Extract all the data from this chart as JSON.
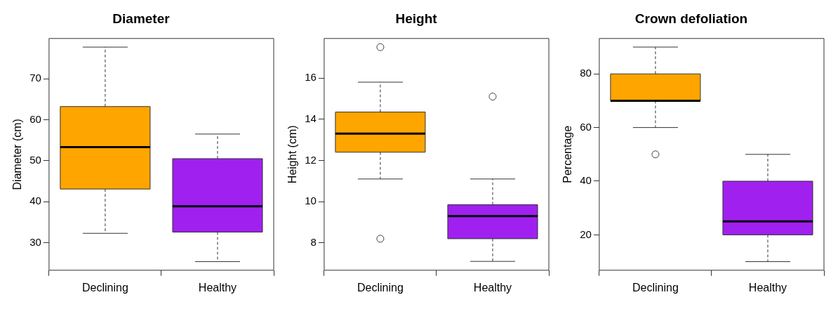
{
  "chart_data": [
    {
      "type": "box",
      "title": "Diameter",
      "ylabel": "Diameter (cm)",
      "categories": [
        "Declining",
        "Healthy"
      ],
      "colors": [
        "#ffa500",
        "#a020f0"
      ],
      "ylim": [
        23.3,
        79.8
      ],
      "yticks": [
        30,
        40,
        50,
        60,
        70
      ],
      "grid": false,
      "boxes": [
        {
          "low": 32.3,
          "q1": 43.1,
          "median": 53.3,
          "q3": 63.2,
          "high": 77.7
        },
        {
          "low": 25.4,
          "q1": 32.6,
          "median": 38.9,
          "q3": 50.5,
          "high": 56.5
        }
      ]
    },
    {
      "type": "box",
      "title": "Height",
      "ylabel": "Height (cm)",
      "categories": [
        "Declining",
        "Healthy"
      ],
      "colors": [
        "#ffa500",
        "#a020f0"
      ],
      "ylim": [
        6.67,
        17.92
      ],
      "yticks": [
        8,
        10,
        12,
        14,
        16
      ],
      "grid": false,
      "boxes": [
        {
          "low": 11.1,
          "q1": 12.4,
          "median": 13.3,
          "q3": 14.35,
          "high": 15.8,
          "outliers": [
            17.5,
            8.2
          ]
        },
        {
          "low": 7.1,
          "q1": 8.2,
          "median": 9.3,
          "q3": 9.85,
          "high": 11.1,
          "outliers": [
            15.1
          ]
        }
      ]
    },
    {
      "type": "box",
      "title": "Crown defoliation",
      "ylabel": "Percentage",
      "categories": [
        "Declining",
        "Healthy"
      ],
      "colors": [
        "#ffa500",
        "#a020f0"
      ],
      "ylim": [
        6.8,
        93.2
      ],
      "yticks": [
        20,
        40,
        60,
        80
      ],
      "grid": false,
      "boxes": [
        {
          "low": 60,
          "q1": 70,
          "median": 70,
          "q3": 80,
          "high": 90,
          "outliers": [
            50
          ]
        },
        {
          "low": 10,
          "q1": 20,
          "median": 25,
          "q3": 40,
          "high": 50
        }
      ]
    }
  ]
}
